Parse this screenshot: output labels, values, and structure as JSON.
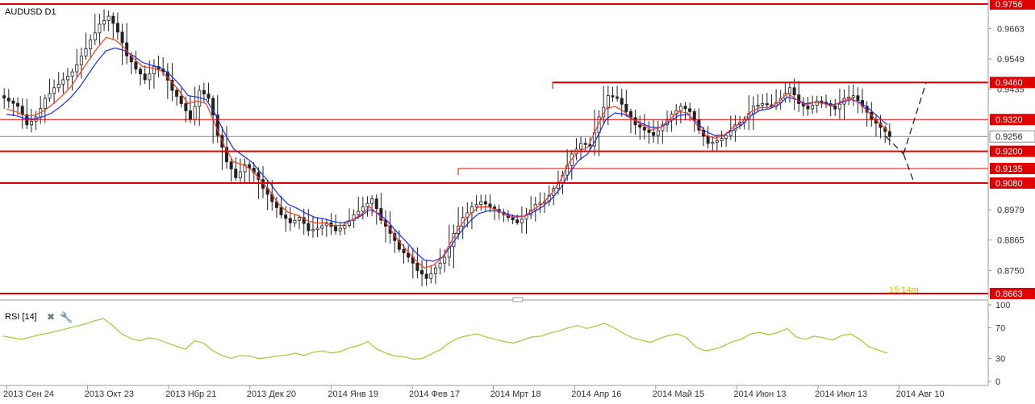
{
  "chart_data": {
    "type": "candlestick",
    "title": "AUDUSD D1",
    "y_ticks": [
      "0.9663",
      "0.9549",
      "0.9435",
      "0.8979",
      "0.8865",
      "0.8750"
    ],
    "y_tick_values": [
      0.9663,
      0.9549,
      0.9435,
      0.8979,
      0.8865,
      0.875
    ],
    "ylim": [
      0.866,
      0.9756
    ],
    "x_ticks": [
      "2013 Сен 24",
      "2013 Окт 23",
      "2013 Нбр 21",
      "2013 Дек 20",
      "2014 Янв 19",
      "2014 Фев 17",
      "2014 Мрт 18",
      "2014 Апр 16",
      "2014 Май 15",
      "2014 Июн 13",
      "2014 Июл 13",
      "2014 Авг 10"
    ],
    "current_price": {
      "label": "0.9256",
      "value": 0.9256
    },
    "timer_label": "15:14m",
    "levels": [
      {
        "label": "0.9756",
        "value": 0.9756,
        "style": "thick"
      },
      {
        "label": "0.9460",
        "value": 0.946,
        "style": "thick",
        "start_date_label": "2014 Мрт 18"
      },
      {
        "label": "0.9320",
        "value": 0.932,
        "style": "thin"
      },
      {
        "label": "0.9200",
        "value": 0.92,
        "style": "thick"
      },
      {
        "label": "0.9135",
        "value": 0.9135,
        "style": "thin",
        "start_date_label": "2014 Фев 17"
      },
      {
        "label": "0.9080",
        "value": 0.908,
        "style": "thick"
      },
      {
        "label": "0.8663",
        "value": 0.8663,
        "style": "thick"
      }
    ],
    "price_path": [
      [
        0.939,
        0.937,
        0.93,
        0.933,
        0.94,
        0.944,
        0.947,
        0.95,
        0.956,
        0.962,
        0.968,
        0.971,
        0.965,
        0.956,
        0.951,
        0.947,
        0.952,
        0.95,
        0.943,
        0.938,
        0.932,
        0.943,
        0.94,
        0.926,
        0.916,
        0.91,
        0.915,
        0.912,
        0.906,
        0.901,
        0.896,
        0.893,
        0.895,
        0.89,
        0.891,
        0.893,
        0.89,
        0.892,
        0.896,
        0.899,
        0.902,
        0.894,
        0.889,
        0.883,
        0.88,
        0.875,
        0.872,
        0.876,
        0.88,
        0.889,
        0.895,
        0.899,
        0.901,
        0.899,
        0.897,
        0.895,
        0.893,
        0.896,
        0.9,
        0.901,
        0.906,
        0.911,
        0.919,
        0.923,
        0.922,
        0.933,
        0.941,
        0.94,
        0.935,
        0.93,
        0.928,
        0.926,
        0.93,
        0.934,
        0.937,
        0.935,
        0.928,
        0.923,
        0.924,
        0.926,
        0.93,
        0.932,
        0.937,
        0.938,
        0.937,
        0.94,
        0.944,
        0.938,
        0.936,
        0.939,
        0.938,
        0.936,
        0.94,
        0.941,
        0.937,
        0.932,
        0.929,
        0.9256
      ]
    ],
    "ema_red": [
      0.936,
      0.935,
      0.9335,
      0.9335,
      0.935,
      0.9375,
      0.9405,
      0.944,
      0.949,
      0.954,
      0.959,
      0.963,
      0.962,
      0.959,
      0.955,
      0.952,
      0.9515,
      0.9505,
      0.947,
      0.943,
      0.938,
      0.939,
      0.938,
      0.93,
      0.922,
      0.916,
      0.915,
      0.913,
      0.909,
      0.905,
      0.9,
      0.897,
      0.896,
      0.894,
      0.893,
      0.893,
      0.892,
      0.892,
      0.894,
      0.896,
      0.899,
      0.896,
      0.892,
      0.887,
      0.883,
      0.879,
      0.876,
      0.877,
      0.88,
      0.886,
      0.892,
      0.896,
      0.899,
      0.899,
      0.898,
      0.896,
      0.895,
      0.8955,
      0.898,
      0.9,
      0.904,
      0.909,
      0.916,
      0.92,
      0.9215,
      0.929,
      0.936,
      0.937,
      0.935,
      0.932,
      0.93,
      0.928,
      0.929,
      0.932,
      0.935,
      0.9345,
      0.93,
      0.926,
      0.925,
      0.926,
      0.929,
      0.931,
      0.935,
      0.9365,
      0.9365,
      0.9385,
      0.942,
      0.9395,
      0.9375,
      0.9385,
      0.938,
      0.937,
      0.939,
      0.94,
      0.938,
      0.9345,
      0.931,
      0.928
    ],
    "ema_blue": [
      0.934,
      0.9335,
      0.9325,
      0.9322,
      0.933,
      0.9345,
      0.937,
      0.94,
      0.944,
      0.949,
      0.954,
      0.958,
      0.959,
      0.958,
      0.956,
      0.9535,
      0.9525,
      0.9515,
      0.949,
      0.9455,
      0.941,
      0.9405,
      0.9395,
      0.934,
      0.927,
      0.921,
      0.9185,
      0.916,
      0.912,
      0.908,
      0.9035,
      0.9,
      0.8985,
      0.8965,
      0.895,
      0.8945,
      0.8935,
      0.893,
      0.894,
      0.8955,
      0.898,
      0.8965,
      0.8935,
      0.8895,
      0.886,
      0.882,
      0.879,
      0.8785,
      0.88,
      0.8845,
      0.8895,
      0.8935,
      0.8965,
      0.8975,
      0.8975,
      0.8965,
      0.8955,
      0.8955,
      0.897,
      0.899,
      0.902,
      0.906,
      0.912,
      0.9165,
      0.919,
      0.925,
      0.932,
      0.9345,
      0.934,
      0.932,
      0.9305,
      0.929,
      0.929,
      0.931,
      0.9335,
      0.934,
      0.931,
      0.9275,
      0.926,
      0.9262,
      0.928,
      0.93,
      0.9335,
      0.9355,
      0.936,
      0.9375,
      0.9405,
      0.9395,
      0.938,
      0.9385,
      0.9382,
      0.9375,
      0.9385,
      0.9395,
      0.9385,
      0.936,
      0.933,
      0.93
    ],
    "forecast": [
      [
        0.9256,
        0.919
      ],
      [
        0.919,
        0.946
      ],
      [
        0.919,
        0.909
      ]
    ],
    "rsi": {
      "label": "RSI [14]",
      "y_ticks": [
        "100",
        "70",
        "30",
        "0"
      ],
      "y_tick_values": [
        100,
        70,
        30,
        0
      ],
      "ylim": [
        0,
        100
      ],
      "values": [
        59,
        57,
        55,
        58,
        61,
        63,
        66,
        69,
        72,
        75,
        79,
        82,
        73,
        62,
        56,
        53,
        57,
        55,
        50,
        46,
        42,
        53,
        50,
        40,
        34,
        30,
        34,
        33,
        30,
        31,
        33,
        34,
        37,
        34,
        38,
        40,
        37,
        39,
        44,
        47,
        52,
        42,
        37,
        33,
        32,
        29,
        30,
        36,
        42,
        51,
        57,
        60,
        62,
        58,
        55,
        52,
        50,
        54,
        58,
        59,
        63,
        66,
        70,
        73,
        69,
        72,
        76,
        70,
        63,
        57,
        54,
        51,
        56,
        60,
        62,
        57,
        45,
        40,
        42,
        46,
        52,
        55,
        62,
        64,
        61,
        64,
        69,
        58,
        55,
        59,
        57,
        54,
        60,
        62,
        55,
        45,
        41,
        37
      ]
    }
  }
}
